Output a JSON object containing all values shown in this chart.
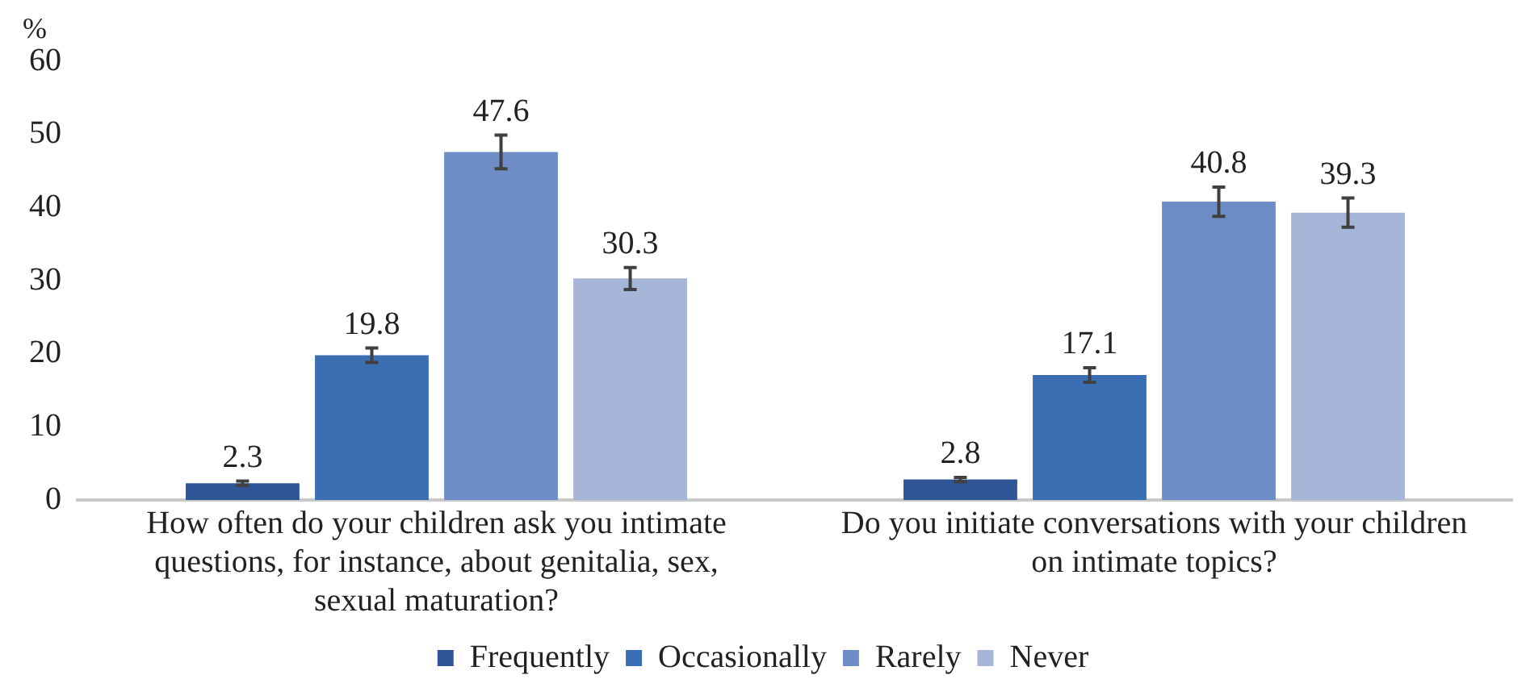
{
  "chart_data": {
    "type": "bar",
    "ylabel": "%",
    "categories": [
      "How often do your children ask you intimate questions, for instance, about genitalia, sex, sexual maturation?",
      "Do you initiate conversations with your children on intimate topics?"
    ],
    "series": [
      {
        "name": "Frequently",
        "color": "#2f5597",
        "values": [
          2.3,
          2.8
        ],
        "errors": [
          0.3,
          0.3
        ]
      },
      {
        "name": "Occasionally",
        "color": "#3c6eb4",
        "values": [
          19.8,
          17.1
        ],
        "errors": [
          1,
          1
        ]
      },
      {
        "name": "Rarely",
        "color": "#6e8cc6",
        "values": [
          47.6,
          40.8
        ],
        "errors": [
          2.3,
          2
        ]
      },
      {
        "name": "Never",
        "color": "#a6b6d9",
        "values": [
          30.3,
          39.3
        ],
        "errors": [
          1.5,
          2
        ]
      }
    ],
    "ylim": [
      0,
      60
    ],
    "yticks": [
      0,
      10,
      20,
      30,
      40,
      50,
      60
    ],
    "grid": false,
    "legend": "bottom",
    "data_labels": true
  }
}
